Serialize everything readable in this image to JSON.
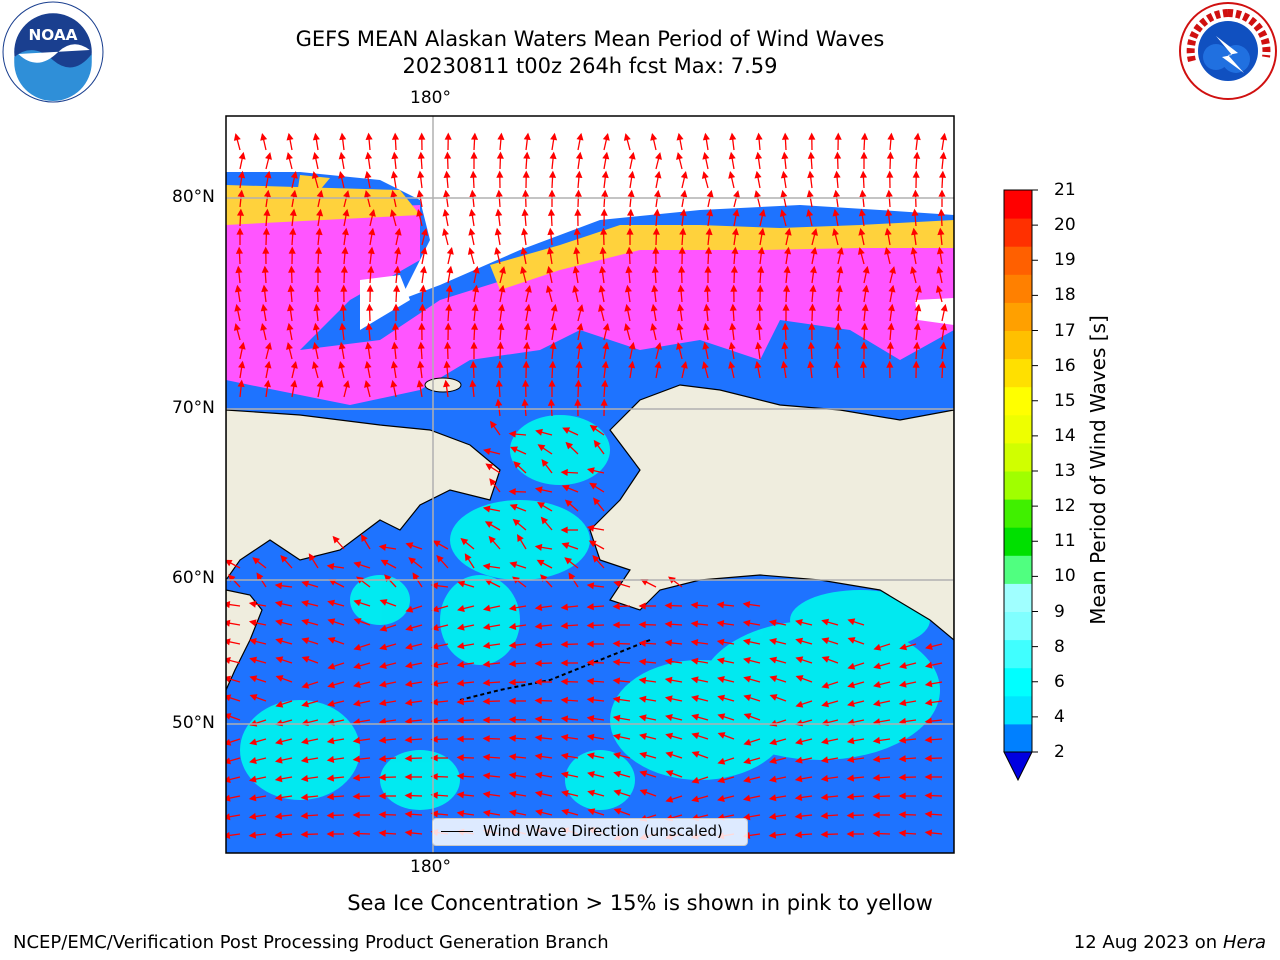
{
  "title": {
    "line1": "GEFS MEAN Alaskan Waters Mean Period of Wind Waves",
    "line2": "20230811 t00z 264h fcst   Max: 7.59"
  },
  "logos": {
    "left": {
      "icon": "noaa-logo-icon",
      "text": "NOAA",
      "ring": "NATIONAL OCEANIC AND ATMOSPHERIC ADMINISTRATION · U.S. DEPARTMENT OF COMMERCE"
    },
    "right": {
      "icon": "nws-logo-icon",
      "ring": "NATIONAL WEATHER SERVICE"
    }
  },
  "map": {
    "lon_label_top": "180°",
    "lon_label_bottom": "180°",
    "lat_labels": [
      "80°N",
      "70°N",
      "60°N",
      "50°N"
    ],
    "legend": "Wind Wave Direction (unscaled)",
    "colors": {
      "land": "#efedde",
      "ocean_low": "#1e73ff",
      "ocean_mid": "#00f0f0",
      "ice_pink": "#ff55ff",
      "ice_yellow": "#ffd23c",
      "arrow": "#ff0000"
    }
  },
  "colorbar": {
    "label": "Mean Period of Wind Waves [s]",
    "ticks": [
      "21",
      "20",
      "19",
      "18",
      "17",
      "16",
      "15",
      "14",
      "13",
      "12",
      "11",
      "10",
      "9",
      "8",
      "6",
      "4",
      "2"
    ],
    "colors": [
      "#0000e0",
      "#0080ff",
      "#00e5ff",
      "#00ffff",
      "#40ffff",
      "#80ffff",
      "#a0ffff",
      "#50ff80",
      "#00e000",
      "#40f000",
      "#a0ff00",
      "#d0ff00",
      "#eeff00",
      "#ffff00",
      "#ffe000",
      "#ffc000",
      "#ffa000",
      "#ff8000",
      "#ff6000",
      "#ff3000",
      "#ff0000"
    ]
  },
  "caption": "Sea Ice Concentration > 15% is shown in pink to yellow",
  "footer": {
    "left": "NCEP/EMC/Verification Post Processing Product Generation Branch",
    "right_date": "12 Aug 2023 on",
    "right_host": "Hera"
  }
}
